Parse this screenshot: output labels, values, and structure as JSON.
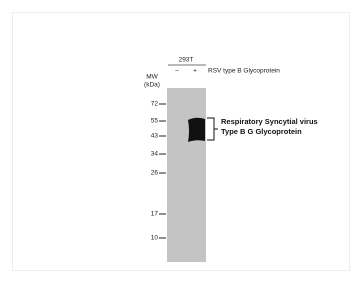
{
  "blot": {
    "cell_line": "293T",
    "lanes": [
      "–",
      "+"
    ],
    "treatment": "RSV type B Glycoprotein",
    "mw_label": "MW",
    "mw_unit": "(kDa)",
    "markers": [
      "72",
      "55",
      "43",
      "34",
      "26",
      "17",
      "10"
    ],
    "annotation": [
      "Respiratory  Syncytial virus",
      "Type B G Glycoprotein"
    ]
  }
}
